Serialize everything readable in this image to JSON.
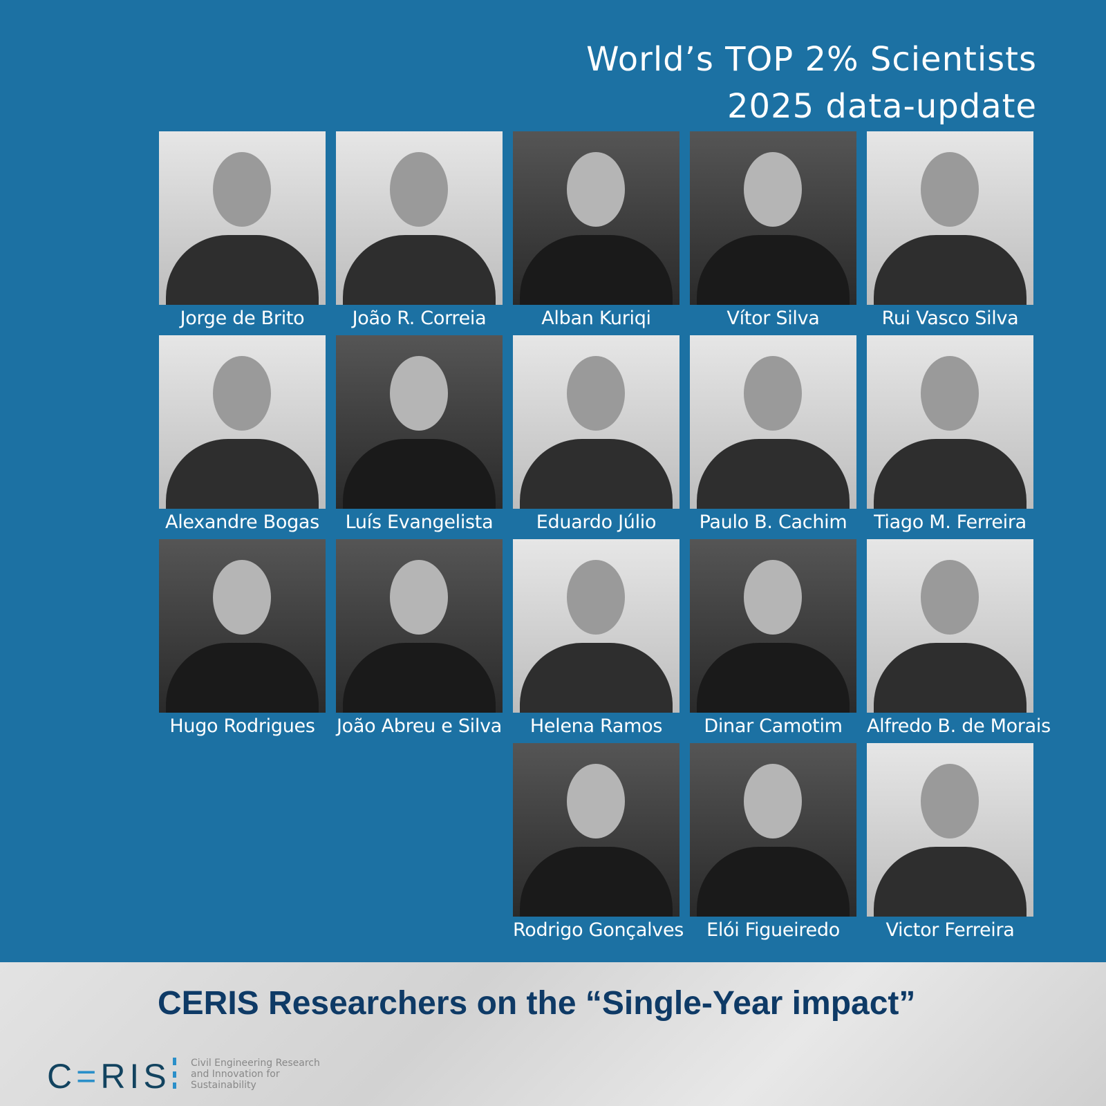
{
  "header": {
    "line1": "World’s TOP 2% Scientists",
    "line2": "2025 data-update"
  },
  "researchers": [
    "Jorge de Brito",
    "João R. Correia",
    "Alban Kuriqi",
    "Vítor Silva",
    "Rui Vasco Silva",
    "Alexandre Bogas",
    "Luís Evangelista",
    "Eduardo Júlio",
    "Paulo B. Cachim",
    "Tiago M. Ferreira",
    "Hugo Rodrigues",
    "João Abreu e Silva",
    "Helena Ramos",
    "Dinar Camotim",
    "Alfredo B. de Morais",
    "Rodrigo Gonçalves",
    "Elói Figueiredo",
    "Victor Ferreira"
  ],
  "footer": {
    "subtitle": "CERIS Researchers on the “Single-Year impact”",
    "logo_text": "CERIS",
    "tagline": [
      "Civil Engineering Research",
      "and Innovation for",
      "Sustainability"
    ]
  },
  "colors": {
    "background": "#1c71a3",
    "subtitle": "#0e3a66",
    "logo": "#12435f",
    "logo_accent": "#2a8fc9"
  }
}
